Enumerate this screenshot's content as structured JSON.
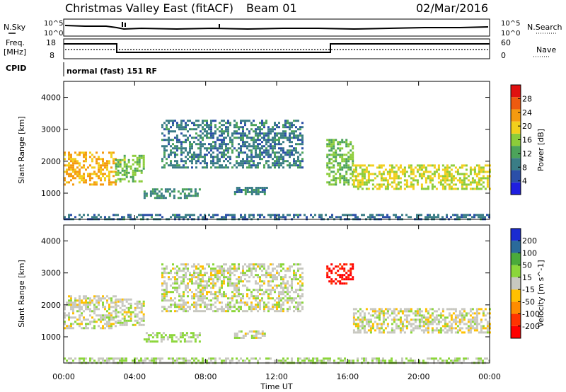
{
  "header": {
    "station": "Christmas Valley East (fitACF)",
    "beam": "Beam 01",
    "date": "02/Mar/2016"
  },
  "panels": {
    "nsky": {
      "label": "N.Sky",
      "right_label": "N.Search",
      "ticks_left": [
        "10^5",
        "10^0"
      ],
      "ticks_right": [
        "10^5",
        "10^0"
      ]
    },
    "freq": {
      "label_line1": "Freq.",
      "label_line2": "[MHz]",
      "right_label": "Nave",
      "ticks_left": [
        "18",
        "8"
      ],
      "ticks_right": [
        "60",
        "0"
      ]
    },
    "cpid": {
      "label": "CPID",
      "mode_text": "normal (fast) 151 RF"
    }
  },
  "colors": {
    "power": [
      "#1f1fe0",
      "#2b4fa8",
      "#3a7d86",
      "#4ca35a",
      "#8ccc3a",
      "#f2cf1c",
      "#f59a10",
      "#ee5a10",
      "#e01010"
    ],
    "velocity": [
      "#ff0000",
      "#ff3300",
      "#ff8c00",
      "#ffc000",
      "#c8c8c0",
      "#8bd63a",
      "#4aaa3a",
      "#2a6a9a",
      "#1a2bd0"
    ]
  },
  "chart_data": [
    {
      "type": "heatmap",
      "name": "Power",
      "ylabel": "Slant Range [km]",
      "colorbar_label": "Power [dB]",
      "colorbar_ticks": [
        "28",
        "24",
        "20",
        "16",
        "12",
        "8",
        "4"
      ],
      "yticks": [
        "4000",
        "3000",
        "2000",
        "1000"
      ],
      "ylim": [
        180,
        4500
      ],
      "xlim": [
        0,
        24
      ],
      "vrange": [
        0,
        32
      ],
      "bands": [
        {
          "t0": 0.0,
          "t1": 2.9,
          "r0": 1300,
          "r1": 2300,
          "v": 22
        },
        {
          "t0": 2.9,
          "t1": 4.5,
          "r0": 1400,
          "r1": 2200,
          "v": 15
        },
        {
          "t0": 4.5,
          "t1": 7.7,
          "r0": 850,
          "r1": 1150,
          "v": 10
        },
        {
          "t0": 9.6,
          "t1": 11.5,
          "r0": 1000,
          "r1": 1200,
          "v": 9
        },
        {
          "t0": 5.5,
          "t1": 13.5,
          "r0": 1800,
          "r1": 3300,
          "v": 9
        },
        {
          "t0": 14.8,
          "t1": 16.3,
          "r0": 1300,
          "r1": 2700,
          "v": 14
        },
        {
          "t0": 16.3,
          "t1": 24.0,
          "r0": 1150,
          "r1": 1900,
          "v": 18
        },
        {
          "t0": 0.0,
          "t1": 24.0,
          "r0": 180,
          "r1": 350,
          "v": 8
        }
      ]
    },
    {
      "type": "heatmap",
      "name": "Velocity",
      "ylabel": "Slant Range [km]",
      "colorbar_label": "Velocity [m s^-1]",
      "colorbar_ticks": [
        "200",
        "100",
        "50",
        "15",
        "-15",
        "-50",
        "-100",
        "-200"
      ],
      "yticks": [
        "4000",
        "3000",
        "2000",
        "1000"
      ],
      "xticks": [
        "00:00",
        "04:00",
        "08:00",
        "12:00",
        "16:00",
        "20:00",
        "00:00"
      ],
      "xlabel": "Time UT",
      "ylim": [
        180,
        4500
      ],
      "xlim": [
        0,
        24
      ],
      "vrange": [
        -250,
        250
      ],
      "bands": [
        {
          "t0": 0.0,
          "t1": 2.9,
          "r0": 1300,
          "r1": 2300,
          "v": 0
        },
        {
          "t0": 2.9,
          "t1": 4.5,
          "r0": 1400,
          "r1": 2200,
          "v": 5
        },
        {
          "t0": 4.5,
          "t1": 7.7,
          "r0": 850,
          "r1": 1150,
          "v": 35
        },
        {
          "t0": 9.6,
          "t1": 11.5,
          "r0": 1000,
          "r1": 1200,
          "v": 0
        },
        {
          "t0": 5.5,
          "t1": 13.5,
          "r0": 1800,
          "r1": 3300,
          "v": 5
        },
        {
          "t0": 14.8,
          "t1": 16.3,
          "r0": 2700,
          "r1": 3300,
          "v": -220
        },
        {
          "t0": 16.3,
          "t1": 24.0,
          "r0": 1150,
          "r1": 1900,
          "v": 0
        },
        {
          "t0": 0.0,
          "t1": 24.0,
          "r0": 180,
          "r1": 350,
          "v": 30
        }
      ]
    }
  ]
}
